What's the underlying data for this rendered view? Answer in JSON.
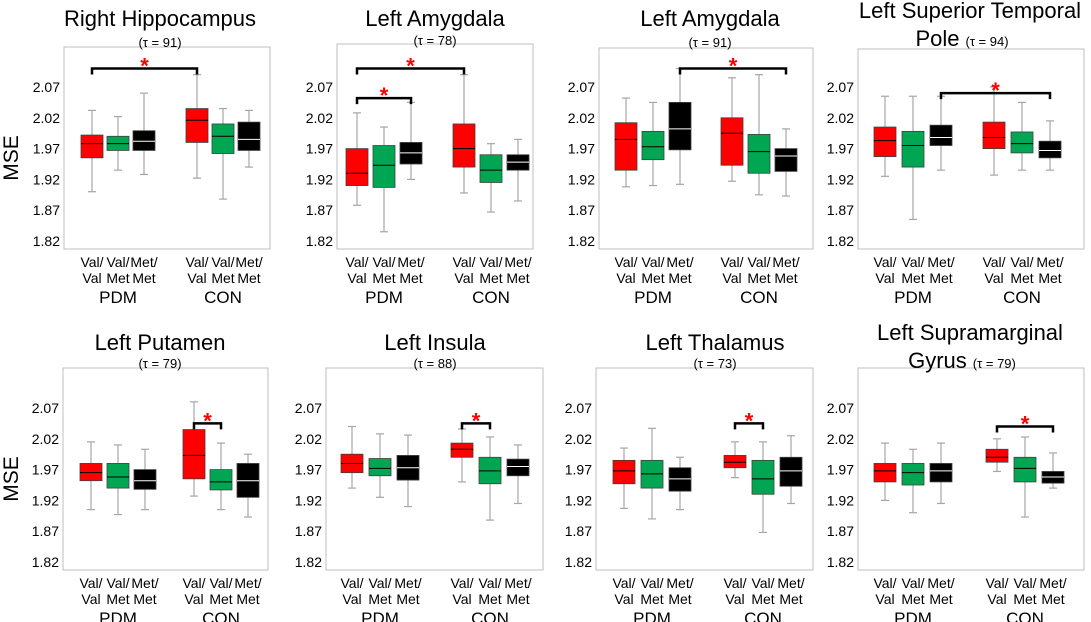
{
  "colors": {
    "Val/Val": "#ff0000",
    "Val/Met": "#00a651",
    "Met/Met": "#000000",
    "whisker": "#a6a6a6",
    "star": "#ff0000",
    "frame": "#bfbfbf"
  },
  "chart_data": [
    {
      "type": "box",
      "title_lines": [
        "Right Hippocampus"
      ],
      "tau": "(τ = 91)",
      "ylabel": "MSE",
      "ylim": [
        1.82,
        2.1
      ],
      "yticks": [
        "2.07",
        "2.02",
        "1.97",
        "1.92",
        "1.87",
        "1.82"
      ],
      "categories": [
        [
          "Val/",
          "Val"
        ],
        [
          "Val/",
          "Met"
        ],
        [
          "Met/",
          "Met"
        ],
        [
          "Val/",
          "Val"
        ],
        [
          "Val/",
          "Met"
        ],
        [
          "Met/",
          "Met"
        ]
      ],
      "groups": [
        "PDM",
        "CON"
      ],
      "boxes": [
        {
          "genotype": "Val/Val",
          "group": "PDM",
          "min": 1.9,
          "q1": 1.955,
          "median": 1.978,
          "q3": 1.992,
          "max": 2.032
        },
        {
          "genotype": "Val/Met",
          "group": "PDM",
          "min": 1.935,
          "q1": 1.967,
          "median": 1.978,
          "q3": 1.99,
          "max": 2.022
        },
        {
          "genotype": "Met/Met",
          "group": "PDM",
          "min": 1.928,
          "q1": 1.967,
          "median": 1.982,
          "q3": 1.999,
          "max": 2.06
        },
        {
          "genotype": "Val/Val",
          "group": "CON",
          "min": 1.922,
          "q1": 1.98,
          "median": 2.016,
          "q3": 2.035,
          "max": 2.09
        },
        {
          "genotype": "Val/Met",
          "group": "CON",
          "min": 1.888,
          "q1": 1.962,
          "median": 1.99,
          "q3": 2.01,
          "max": 2.035
        },
        {
          "genotype": "Met/Met",
          "group": "CON",
          "min": 1.94,
          "q1": 1.967,
          "median": 1.985,
          "q3": 2.013,
          "max": 2.032
        }
      ],
      "significance": [
        {
          "from": 0,
          "to": 3,
          "level": 2.1,
          "label": "*"
        }
      ]
    },
    {
      "type": "box",
      "title_lines": [
        "Left Amygdala"
      ],
      "tau": "(τ = 78)",
      "ylabel": "",
      "ylim": [
        1.82,
        2.1
      ],
      "yticks": [
        "2.07",
        "2.02",
        "1.97",
        "1.92",
        "1.87",
        "1.82"
      ],
      "categories": [
        [
          "Val/",
          "Val"
        ],
        [
          "Val/",
          "Met"
        ],
        [
          "Met/",
          "Met"
        ],
        [
          "Val/",
          "Val"
        ],
        [
          "Val/",
          "Met"
        ],
        [
          "Met/",
          "Met"
        ]
      ],
      "groups": [
        "PDM",
        "CON"
      ],
      "boxes": [
        {
          "genotype": "Val/Val",
          "group": "PDM",
          "min": 1.878,
          "q1": 1.91,
          "median": 1.93,
          "q3": 1.97,
          "max": 2.028
        },
        {
          "genotype": "Val/Met",
          "group": "PDM",
          "min": 1.835,
          "q1": 1.907,
          "median": 1.943,
          "q3": 1.975,
          "max": 2.005
        },
        {
          "genotype": "Met/Met",
          "group": "PDM",
          "min": 1.92,
          "q1": 1.945,
          "median": 1.963,
          "q3": 1.98,
          "max": 2.045
        },
        {
          "genotype": "Val/Val",
          "group": "CON",
          "min": 1.898,
          "q1": 1.94,
          "median": 1.97,
          "q3": 2.01,
          "max": 2.09
        },
        {
          "genotype": "Val/Met",
          "group": "CON",
          "min": 1.867,
          "q1": 1.915,
          "median": 1.935,
          "q3": 1.96,
          "max": 1.978
        },
        {
          "genotype": "Met/Met",
          "group": "CON",
          "min": 1.885,
          "q1": 1.935,
          "median": 1.948,
          "q3": 1.96,
          "max": 1.985
        }
      ],
      "significance": [
        {
          "from": 0,
          "to": 2,
          "level": 2.052,
          "label": "*"
        },
        {
          "from": 0,
          "to": 3,
          "level": 2.1,
          "label": "*"
        }
      ]
    },
    {
      "type": "box",
      "title_lines": [
        "Left Amygdala"
      ],
      "tau": "(τ = 91)",
      "ylabel": "",
      "ylim": [
        1.82,
        2.1
      ],
      "yticks": [
        "2.07",
        "2.02",
        "1.97",
        "1.92",
        "1.87",
        "1.82"
      ],
      "categories": [
        [
          "Val/",
          "Val"
        ],
        [
          "Val/",
          "Met"
        ],
        [
          "Met/",
          "Met"
        ],
        [
          "Val/",
          "Val"
        ],
        [
          "Val/",
          "Met"
        ],
        [
          "Met/",
          "Met"
        ]
      ],
      "groups": [
        "PDM",
        "CON"
      ],
      "boxes": [
        {
          "genotype": "Val/Val",
          "group": "PDM",
          "min": 1.908,
          "q1": 1.935,
          "median": 1.985,
          "q3": 2.012,
          "max": 2.052
        },
        {
          "genotype": "Val/Met",
          "group": "PDM",
          "min": 1.91,
          "q1": 1.952,
          "median": 1.973,
          "q3": 1.998,
          "max": 2.045
        },
        {
          "genotype": "Met/Met",
          "group": "PDM",
          "min": 1.912,
          "q1": 1.968,
          "median": 2.002,
          "q3": 2.045,
          "max": 2.1
        },
        {
          "genotype": "Val/Val",
          "group": "CON",
          "min": 1.917,
          "q1": 1.943,
          "median": 1.995,
          "q3": 2.02,
          "max": 2.085
        },
        {
          "genotype": "Val/Met",
          "group": "CON",
          "min": 1.895,
          "q1": 1.93,
          "median": 1.965,
          "q3": 1.993,
          "max": 2.09
        },
        {
          "genotype": "Met/Met",
          "group": "CON",
          "min": 1.893,
          "q1": 1.933,
          "median": 1.958,
          "q3": 1.97,
          "max": 2.002
        }
      ],
      "significance": [
        {
          "from": 2,
          "to": 5,
          "level": 2.1,
          "label": "*"
        }
      ]
    },
    {
      "type": "box",
      "title_lines": [
        "Left Superior Temporal",
        "Pole"
      ],
      "tau": "(τ = 94)",
      "ylabel": "",
      "ylim": [
        1.82,
        2.1
      ],
      "yticks": [
        "2.07",
        "2.02",
        "1.97",
        "1.92",
        "1.87",
        "1.82"
      ],
      "categories": [
        [
          "Val/",
          "Val"
        ],
        [
          "Val/",
          "Met"
        ],
        [
          "Met/",
          "Met"
        ],
        [
          "Val/",
          "Val"
        ],
        [
          "Val/",
          "Met"
        ],
        [
          "Met/",
          "Met"
        ]
      ],
      "groups": [
        "PDM",
        "CON"
      ],
      "boxes": [
        {
          "genotype": "Val/Val",
          "group": "PDM",
          "min": 1.925,
          "q1": 1.957,
          "median": 1.983,
          "q3": 2.005,
          "max": 2.055
        },
        {
          "genotype": "Val/Met",
          "group": "PDM",
          "min": 1.855,
          "q1": 1.94,
          "median": 1.975,
          "q3": 1.998,
          "max": 2.055
        },
        {
          "genotype": "Met/Met",
          "group": "PDM",
          "min": 1.935,
          "q1": 1.975,
          "median": 1.988,
          "q3": 2.008,
          "max": 2.055
        },
        {
          "genotype": "Val/Val",
          "group": "CON",
          "min": 1.927,
          "q1": 1.97,
          "median": 1.988,
          "q3": 2.013,
          "max": 2.07
        },
        {
          "genotype": "Val/Met",
          "group": "CON",
          "min": 1.935,
          "q1": 1.963,
          "median": 1.978,
          "q3": 1.997,
          "max": 2.045
        },
        {
          "genotype": "Met/Met",
          "group": "CON",
          "min": 1.935,
          "q1": 1.955,
          "median": 1.967,
          "q3": 1.982,
          "max": 2.015
        }
      ],
      "significance": [
        {
          "from": 2,
          "to": 5,
          "level": 2.06,
          "label": "*"
        }
      ]
    },
    {
      "type": "box",
      "title_lines": [
        "Left Putamen"
      ],
      "tau": "(τ = 79)",
      "ylabel": "MSE",
      "ylim": [
        1.82,
        2.1
      ],
      "yticks": [
        "2.07",
        "2.02",
        "1.97",
        "1.92",
        "1.87",
        "1.82"
      ],
      "categories": [
        [
          "Val/",
          "Val"
        ],
        [
          "Val/",
          "Met"
        ],
        [
          "Met/",
          "Met"
        ],
        [
          "Val/",
          "Val"
        ],
        [
          "Val/",
          "Met"
        ],
        [
          "Met/",
          "Met"
        ]
      ],
      "groups": [
        "PDM",
        "CON"
      ],
      "boxes": [
        {
          "genotype": "Val/Val",
          "group": "PDM",
          "min": 1.905,
          "q1": 1.952,
          "median": 1.965,
          "q3": 1.98,
          "max": 2.015
        },
        {
          "genotype": "Val/Met",
          "group": "PDM",
          "min": 1.897,
          "q1": 1.94,
          "median": 1.958,
          "q3": 1.98,
          "max": 2.01
        },
        {
          "genotype": "Met/Met",
          "group": "PDM",
          "min": 1.905,
          "q1": 1.938,
          "median": 1.952,
          "q3": 1.97,
          "max": 2.003
        },
        {
          "genotype": "Val/Val",
          "group": "CON",
          "min": 1.927,
          "q1": 1.955,
          "median": 1.993,
          "q3": 2.035,
          "max": 2.08
        },
        {
          "genotype": "Val/Met",
          "group": "CON",
          "min": 1.905,
          "q1": 1.937,
          "median": 1.95,
          "q3": 1.97,
          "max": 2.013
        },
        {
          "genotype": "Met/Met",
          "group": "CON",
          "min": 1.893,
          "q1": 1.925,
          "median": 1.952,
          "q3": 1.98,
          "max": 1.995
        }
      ],
      "significance": [
        {
          "from": 3,
          "to": 4,
          "level": 2.045,
          "label": "*"
        }
      ]
    },
    {
      "type": "box",
      "title_lines": [
        "Left Insula"
      ],
      "tau": "(τ = 88)",
      "ylabel": "",
      "ylim": [
        1.82,
        2.1
      ],
      "yticks": [
        "2.07",
        "2.02",
        "1.97",
        "1.92",
        "1.87",
        "1.82"
      ],
      "categories": [
        [
          "Val/",
          "Val"
        ],
        [
          "Val/",
          "Met"
        ],
        [
          "Met/",
          "Met"
        ],
        [
          "Val/",
          "Val"
        ],
        [
          "Val/",
          "Met"
        ],
        [
          "Met/",
          "Met"
        ]
      ],
      "groups": [
        "PDM",
        "CON"
      ],
      "boxes": [
        {
          "genotype": "Val/Val",
          "group": "PDM",
          "min": 1.94,
          "q1": 1.965,
          "median": 1.98,
          "q3": 1.995,
          "max": 2.04
        },
        {
          "genotype": "Val/Met",
          "group": "PDM",
          "min": 1.925,
          "q1": 1.96,
          "median": 1.972,
          "q3": 1.988,
          "max": 2.028
        },
        {
          "genotype": "Met/Met",
          "group": "PDM",
          "min": 1.91,
          "q1": 1.953,
          "median": 1.973,
          "q3": 1.993,
          "max": 2.026
        },
        {
          "genotype": "Val/Val",
          "group": "CON",
          "min": 1.95,
          "q1": 1.99,
          "median": 2.003,
          "q3": 2.013,
          "max": 2.036
        },
        {
          "genotype": "Val/Met",
          "group": "CON",
          "min": 1.888,
          "q1": 1.947,
          "median": 1.968,
          "q3": 1.99,
          "max": 2.023
        },
        {
          "genotype": "Met/Met",
          "group": "CON",
          "min": 1.915,
          "q1": 1.96,
          "median": 1.975,
          "q3": 1.987,
          "max": 2.01
        }
      ],
      "significance": [
        {
          "from": 3,
          "to": 4,
          "level": 2.045,
          "label": "*"
        }
      ]
    },
    {
      "type": "box",
      "title_lines": [
        "Left Thalamus"
      ],
      "tau": "(τ = 73)",
      "ylabel": "",
      "ylim": [
        1.82,
        2.1
      ],
      "yticks": [
        "2.07",
        "2.02",
        "1.97",
        "1.92",
        "1.87",
        "1.82"
      ],
      "categories": [
        [
          "Val/",
          "Val"
        ],
        [
          "Val/",
          "Met"
        ],
        [
          "Met/",
          "Met"
        ],
        [
          "Val/",
          "Val"
        ],
        [
          "Val/",
          "Met"
        ],
        [
          "Met/",
          "Met"
        ]
      ],
      "groups": [
        "PDM",
        "CON"
      ],
      "boxes": [
        {
          "genotype": "Val/Val",
          "group": "PDM",
          "min": 1.907,
          "q1": 1.947,
          "median": 1.968,
          "q3": 1.985,
          "max": 2.005
        },
        {
          "genotype": "Val/Met",
          "group": "PDM",
          "min": 1.89,
          "q1": 1.94,
          "median": 1.963,
          "q3": 1.985,
          "max": 2.037
        },
        {
          "genotype": "Met/Met",
          "group": "PDM",
          "min": 1.905,
          "q1": 1.935,
          "median": 1.955,
          "q3": 1.973,
          "max": 1.99
        },
        {
          "genotype": "Val/Val",
          "group": "CON",
          "min": 1.957,
          "q1": 1.973,
          "median": 1.982,
          "q3": 1.993,
          "max": 2.015
        },
        {
          "genotype": "Val/Met",
          "group": "CON",
          "min": 1.868,
          "q1": 1.93,
          "median": 1.955,
          "q3": 1.985,
          "max": 2.015
        },
        {
          "genotype": "Met/Met",
          "group": "CON",
          "min": 1.915,
          "q1": 1.943,
          "median": 1.968,
          "q3": 1.99,
          "max": 2.025
        }
      ],
      "significance": [
        {
          "from": 3,
          "to": 4,
          "level": 2.045,
          "label": "*"
        }
      ]
    },
    {
      "type": "box",
      "title_lines": [
        "Left Supramarginal",
        "Gyrus"
      ],
      "tau": "(τ = 79)",
      "ylabel": "",
      "ylim": [
        1.82,
        2.1
      ],
      "yticks": [
        "2.07",
        "2.02",
        "1.97",
        "1.92",
        "1.87",
        "1.82"
      ],
      "categories": [
        [
          "Val/",
          "Val"
        ],
        [
          "Val/",
          "Met"
        ],
        [
          "Met/",
          "Met"
        ],
        [
          "Val/",
          "Val"
        ],
        [
          "Val/",
          "Met"
        ],
        [
          "Met/",
          "Met"
        ]
      ],
      "groups": [
        "PDM",
        "CON"
      ],
      "boxes": [
        {
          "genotype": "Val/Val",
          "group": "PDM",
          "min": 1.92,
          "q1": 1.95,
          "median": 1.968,
          "q3": 1.98,
          "max": 2.013
        },
        {
          "genotype": "Val/Met",
          "group": "PDM",
          "min": 1.9,
          "q1": 1.945,
          "median": 1.965,
          "q3": 1.98,
          "max": 2.003
        },
        {
          "genotype": "Met/Met",
          "group": "PDM",
          "min": 1.915,
          "q1": 1.95,
          "median": 1.968,
          "q3": 1.98,
          "max": 2.013
        },
        {
          "genotype": "Val/Val",
          "group": "CON",
          "min": 1.967,
          "q1": 1.982,
          "median": 1.99,
          "q3": 2.003,
          "max": 2.02
        },
        {
          "genotype": "Val/Met",
          "group": "CON",
          "min": 1.893,
          "q1": 1.95,
          "median": 1.972,
          "q3": 1.99,
          "max": 2.023
        },
        {
          "genotype": "Met/Met",
          "group": "CON",
          "min": 1.94,
          "q1": 1.948,
          "median": 1.958,
          "q3": 1.967,
          "max": 1.997
        }
      ],
      "significance": [
        {
          "from": 3,
          "to": 5,
          "level": 2.04,
          "label": "*"
        }
      ]
    }
  ]
}
